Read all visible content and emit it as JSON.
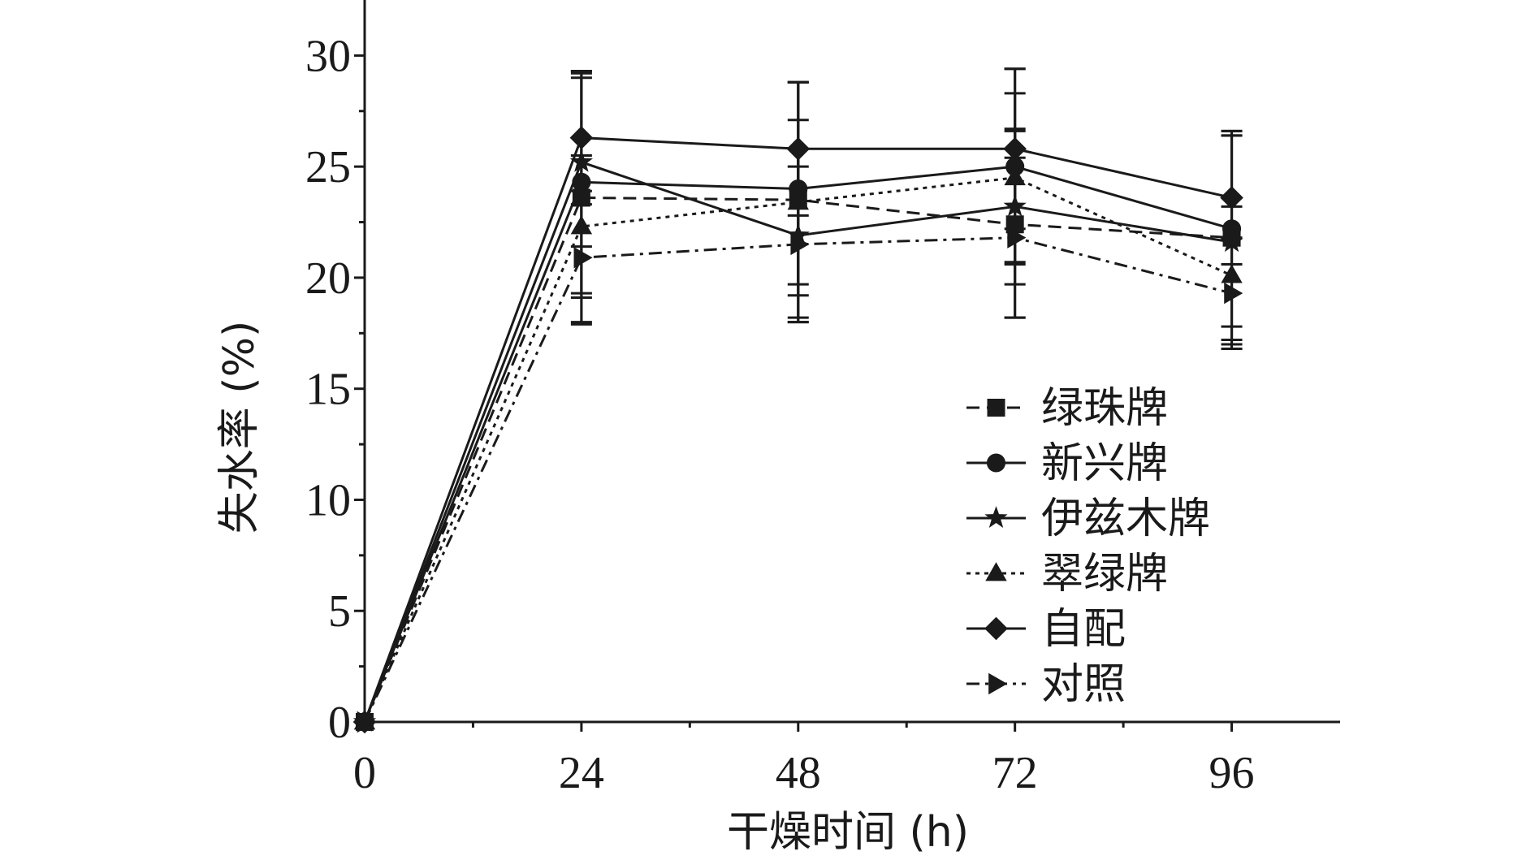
{
  "chart_data": {
    "type": "line",
    "title": "",
    "xlabel": "干燥时间 (h)",
    "ylabel": "失水率 (%)",
    "x": [
      0,
      24,
      48,
      72,
      96
    ],
    "x_ticks": [
      "0",
      "24",
      "48",
      "72",
      "96"
    ],
    "y_ticks": [
      "0",
      "5",
      "10",
      "15",
      "20",
      "25",
      "30"
    ],
    "xlim": [
      0,
      108
    ],
    "ylim": [
      0,
      32.5
    ],
    "grid": false,
    "legend_position": "lower-right",
    "color": "#1a1a1a",
    "series": [
      {
        "name": "绿珠牌",
        "marker": "square",
        "dash": "dashed",
        "values": [
          0,
          23.6,
          23.5,
          22.4,
          21.8
        ],
        "errors": [
          0,
          5.6,
          5.3,
          4.2,
          4.6
        ]
      },
      {
        "name": "新兴牌",
        "marker": "circle",
        "dash": "solid",
        "values": [
          0,
          24.3,
          24.0,
          25.0,
          22.2
        ],
        "errors": [
          0,
          5.0,
          4.8,
          4.4,
          4.4
        ]
      },
      {
        "name": "伊兹木牌",
        "marker": "star",
        "dash": "solid",
        "values": [
          0,
          25.2,
          21.9,
          23.2,
          21.6
        ],
        "errors": [
          0,
          3.8,
          3.9,
          3.5,
          4.8
        ]
      },
      {
        "name": "翠绿牌",
        "marker": "triangle-up",
        "dash": "dotted",
        "values": [
          0,
          22.3,
          23.4,
          24.5,
          20.1
        ],
        "errors": [
          0,
          3.2,
          3.7,
          3.8,
          3.1
        ]
      },
      {
        "name": "自配",
        "marker": "diamond",
        "dash": "solid",
        "values": [
          0,
          26.3,
          25.8,
          25.8,
          23.6
        ],
        "errors": [
          0,
          3.0,
          3.0,
          3.6,
          3.0
        ]
      },
      {
        "name": "对照",
        "marker": "triangle-right",
        "dash": "dashdot",
        "values": [
          0,
          20.9,
          21.5,
          21.8,
          19.3
        ],
        "errors": [
          0,
          3.0,
          3.5,
          3.6,
          2.5
        ]
      }
    ]
  }
}
